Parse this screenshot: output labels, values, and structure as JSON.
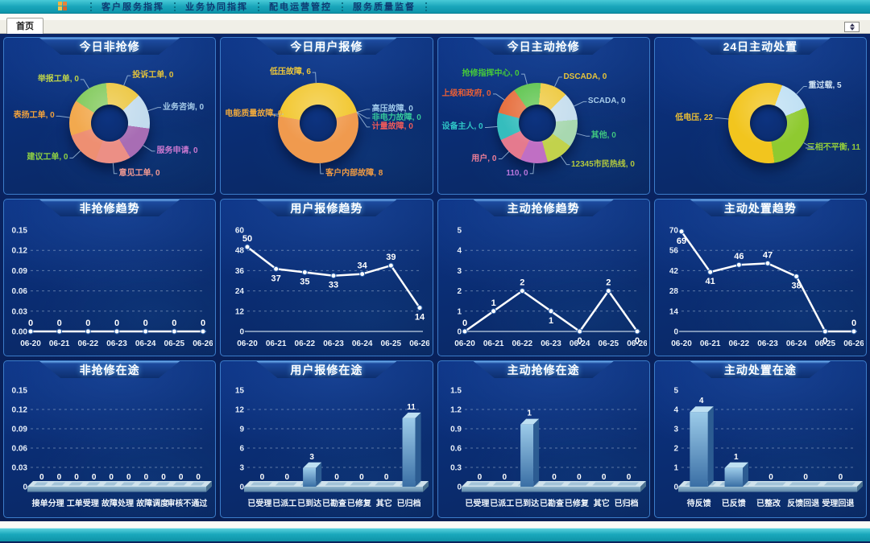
{
  "header": {
    "menu_items": [
      "客户服务指挥",
      "业务协同指挥",
      "配电运营管控",
      "服务质量监督"
    ]
  },
  "tabs": {
    "home_label": "首页"
  },
  "colors": {
    "topbar_teal": "#1aa6bb",
    "panel_border": "#3c7cc9",
    "panel_bg": "#0a2c70",
    "line_color": "#ffffff"
  },
  "panels": {
    "donuts": [
      {
        "title": "今日非抢修",
        "start_angle": -5,
        "slices": [
          {
            "label": "投诉工单",
            "value": 0,
            "color": "#ecc63f",
            "text_color": "#e3c23a"
          },
          {
            "label": "业务咨询",
            "value": 0,
            "color": "#c3dcee",
            "text_color": "#a6cbe9"
          },
          {
            "label": "服务申请",
            "value": 0,
            "color": "#a86db4",
            "text_color": "#c978cf"
          },
          {
            "label": "意见工单",
            "value": 0,
            "color": "#ec8f85",
            "text_color": "#f19a93"
          },
          {
            "label": "建议工单",
            "value": 0,
            "color": "#ee8f72",
            "text_color": "#8ed044"
          },
          {
            "label": "表扬工单",
            "value": 0,
            "color": "#f2a94e",
            "text_color": "#f0a13c"
          },
          {
            "label": "举报工单",
            "value": 0,
            "color": "#82ca5c",
            "text_color": "#bdd24a"
          }
        ]
      },
      {
        "title": "今日用户报修",
        "start_angle": -80,
        "slices": [
          {
            "label": "低压故障",
            "value": 6,
            "color": "#f2c832",
            "text_color": "#ecc63a"
          },
          {
            "label": "高压故障",
            "value": 0,
            "color": "#bcd8ec",
            "text_color": "#9fc9ea"
          },
          {
            "label": "非电力故障",
            "value": 0,
            "color": "#3fc8a0",
            "text_color": "#35c79b"
          },
          {
            "label": "计量故障",
            "value": 0,
            "color": "#e85b5b",
            "text_color": "#ec5a5a"
          },
          {
            "label": "客户内部故障",
            "value": 8,
            "color": "#f09a4e",
            "text_color": "#ef9a43"
          },
          {
            "label": "电能质量故障",
            "value": 0,
            "color": "#f0b043",
            "text_color": "#eda83d"
          }
        ]
      },
      {
        "title": "今日主动抢修",
        "start_angle": 5,
        "slices": [
          {
            "label": "DSCADA",
            "value": 0,
            "color": "#eec93e",
            "text_color": "#e6c43a"
          },
          {
            "label": "SCADA",
            "value": 0,
            "color": "#c6deee",
            "text_color": "#a8cdea"
          },
          {
            "label": "其他",
            "value": 0,
            "color": "#a8d8b0",
            "text_color": "#3fc480"
          },
          {
            "label": "12345市民热线",
            "value": 0,
            "color": "#c2d24c",
            "text_color": "#b2c83e"
          },
          {
            "label": "110",
            "value": 0,
            "color": "#c06fc4",
            "text_color": "#b877dd"
          },
          {
            "label": "用户",
            "value": 0,
            "color": "#e57a8e",
            "text_color": "#ef7f98"
          },
          {
            "label": "设备主人",
            "value": 0,
            "color": "#35bdbd",
            "text_color": "#2fc6c6"
          },
          {
            "label": "上级和政府",
            "value": 0,
            "color": "#e66f3e",
            "text_color": "#ea5f35"
          },
          {
            "label": "抢修指挥中心",
            "value": 0,
            "color": "#5cc44c",
            "text_color": "#46ca3a"
          }
        ]
      },
      {
        "title": "24日主动处置",
        "start_angle": 20,
        "slices": [
          {
            "label": "重过载",
            "value": 5,
            "color": "#bfe0f4",
            "text_color": "#cfe2f2"
          },
          {
            "label": "三相不平衡",
            "value": 11,
            "color": "#8fca30",
            "text_color": "#93cd3c"
          },
          {
            "label": "低电压",
            "value": 22,
            "color": "#f2c51e",
            "text_color": "#ecbf35"
          }
        ]
      }
    ],
    "lines": [
      {
        "title": "非抢修趋势",
        "ymax": 0.15,
        "y_ticks": [
          "0.00",
          "0.03",
          "0.06",
          "0.09",
          "0.12",
          "0.15"
        ],
        "x_labels": [
          "06-20",
          "06-21",
          "06-22",
          "06-23",
          "06-24",
          "06-25",
          "06-26"
        ],
        "values": [
          0,
          0,
          0,
          0,
          0,
          0,
          0
        ]
      },
      {
        "title": "用户报修趋势",
        "ymax": 60,
        "y_ticks": [
          "0",
          "12",
          "24",
          "36",
          "48",
          "60"
        ],
        "x_labels": [
          "06-20",
          "06-21",
          "06-22",
          "06-23",
          "06-24",
          "06-25",
          "06-26"
        ],
        "values": [
          50,
          37,
          35,
          33,
          34,
          39,
          14
        ]
      },
      {
        "title": "主动抢修趋势",
        "ymax": 5,
        "y_ticks": [
          "0",
          "1",
          "2",
          "3",
          "4",
          "5"
        ],
        "x_labels": [
          "06-20",
          "06-21",
          "06-22",
          "06-23",
          "06-24",
          "06-25",
          "06-26"
        ],
        "values": [
          0,
          1,
          2,
          1,
          0,
          2,
          0
        ]
      },
      {
        "title": "主动处置趋势",
        "ymax": 70,
        "y_ticks": [
          "0",
          "14",
          "28",
          "42",
          "56",
          "70"
        ],
        "x_labels": [
          "06-20",
          "06-21",
          "06-22",
          "06-23",
          "06-24",
          "06-25",
          "06-26"
        ],
        "values": [
          69,
          41,
          46,
          47,
          38,
          0,
          0
        ]
      }
    ],
    "bars": [
      {
        "title": "非抢修在途",
        "ymax": 0.15,
        "y_ticks": [
          "0",
          "0.03",
          "0.06",
          "0.09",
          "0.12",
          "0.15"
        ],
        "values": [
          0,
          0,
          0,
          0,
          0,
          0,
          0,
          0,
          0,
          0
        ],
        "axis_labels": [
          "接单分理",
          "工单受理",
          "故障处理",
          "故障调度",
          "审核不通过"
        ]
      },
      {
        "title": "用户报修在途",
        "ymax": 15,
        "y_ticks": [
          "0",
          "3",
          "6",
          "9",
          "12",
          "15"
        ],
        "values": [
          0,
          0,
          3,
          0,
          0,
          0,
          11
        ],
        "axis_labels": [
          "已受理",
          "已派工",
          "已到达",
          "已勘查",
          "已修复",
          "其它",
          "已归档"
        ]
      },
      {
        "title": "主动抢修在途",
        "ymax": 1.5,
        "y_ticks": [
          "0",
          "0.3",
          "0.6",
          "0.9",
          "1.2",
          "1.5"
        ],
        "values": [
          0,
          0,
          1,
          0,
          0,
          0,
          0
        ],
        "axis_labels": [
          "已受理",
          "已派工",
          "已到达",
          "已勘查",
          "已修复",
          "其它",
          "已归档"
        ]
      },
      {
        "title": "主动处置在途",
        "ymax": 5,
        "y_ticks": [
          "0",
          "1",
          "2",
          "3",
          "4",
          "5"
        ],
        "values": [
          4,
          1,
          0,
          0,
          0
        ],
        "axis_labels": [
          "待反馈",
          "已反馈",
          "已整改",
          "反馈回退",
          "受理回退"
        ]
      }
    ]
  }
}
